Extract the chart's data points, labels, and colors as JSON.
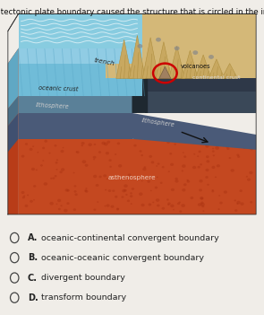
{
  "title": "Which tectonic plate boundary caused the structure that is circled in the image?",
  "title_fontsize": 6.3,
  "choices": [
    {
      "letter": "A.",
      "text": "oceanic-continental convergent boundary"
    },
    {
      "letter": "B.",
      "text": "oceanic-oceanic convergent boundary"
    },
    {
      "letter": "C.",
      "text": "divergent boundary"
    },
    {
      "letter": "D.",
      "text": "transform boundary"
    }
  ],
  "colors": {
    "bg": "#f0ede8",
    "sand": "#d4b878",
    "ocean_blue": "#6bbcd4",
    "ocean_blue2": "#88cce0",
    "oceanic_crust_blue": "#7ab8cc",
    "litho_blue_gray": "#6a7f96",
    "litho_dark": "#2a3545",
    "mantle_red": "#c0451a",
    "mantle_dark": "#a83818",
    "mantle_orange": "#d05522",
    "continental_dark": "#3a4050",
    "circle_red": "#cc0000"
  },
  "figsize": [
    2.95,
    3.51
  ],
  "dpi": 100
}
